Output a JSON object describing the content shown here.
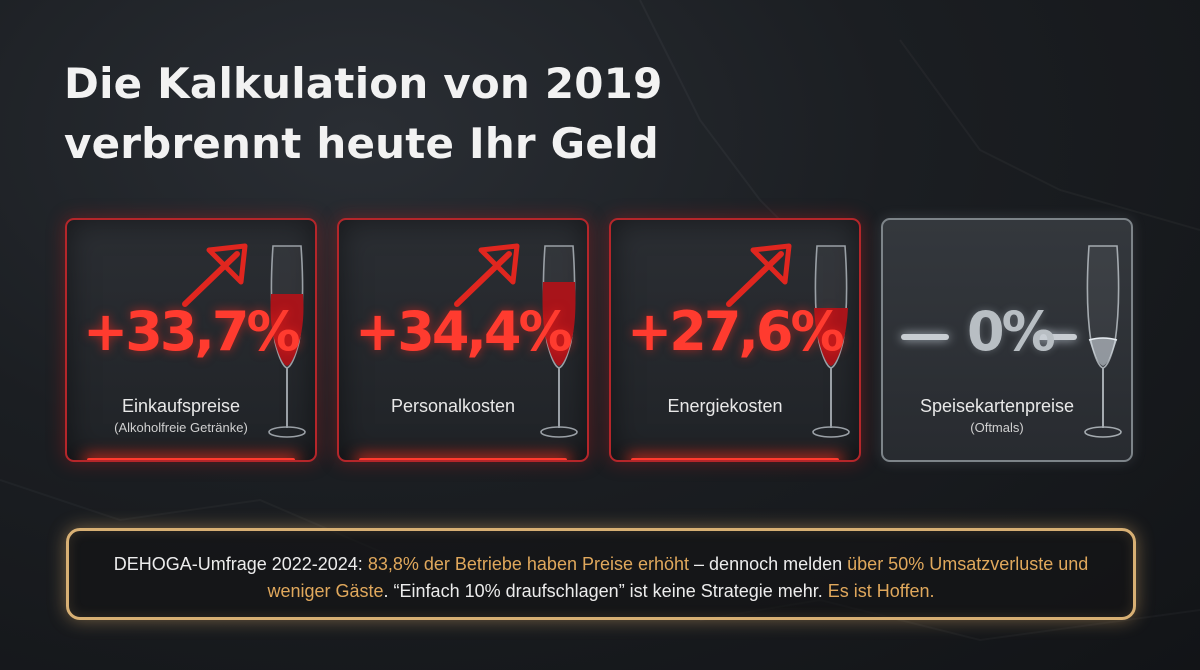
{
  "title": {
    "line1": "Die Kalkulation von 2019",
    "line2": "verbrennt heute Ihr Geld"
  },
  "cards": [
    {
      "value": "+33,7%",
      "label": "Einkaufspreise",
      "sublabel": "(Alkoholfreie Getränke)",
      "trend": "up",
      "fill_level": 0.55
    },
    {
      "value": "+34,4%",
      "label": "Personalkosten",
      "sublabel": "",
      "trend": "up",
      "fill_level": 0.6
    },
    {
      "value": "+27,6%",
      "label": "Energiekosten",
      "sublabel": "",
      "trend": "up",
      "fill_level": 0.4
    },
    {
      "value": "0%",
      "label": "Speisekartenpreise",
      "sublabel": "(Oftmals)",
      "trend": "flat",
      "fill_level": 0.2
    }
  ],
  "colors": {
    "accent_red": "#ff3b2f",
    "neutral_grey": "#b8bec3",
    "highlight_gold": "#e0a85c"
  },
  "icons": [
    "arrow-up-icon",
    "champagne-glass-icon"
  ],
  "note": {
    "part1": "DEHOGA-Umfrage 2022-2024: ",
    "hl1": "83,8% der Betriebe haben Preise erhöht",
    "part2": " – dennoch melden ",
    "hl2": "über 50% Umsatzverluste und weniger Gäste",
    "part3": ". “Einfach 10% draufschlagen” ist keine Strategie mehr. ",
    "hl3": "Es ist Hoffen."
  }
}
